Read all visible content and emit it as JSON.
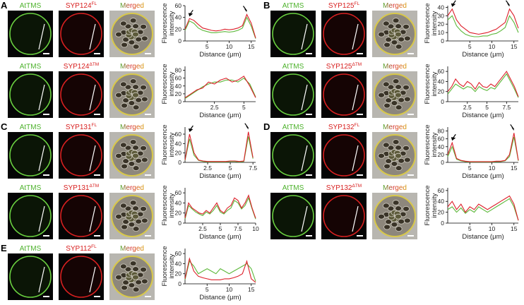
{
  "panels": [
    {
      "letter": "A",
      "rows": [
        {
          "green_label": "AtTMS",
          "red_label": "SYP124",
          "red_sup": "FL",
          "merged_label": "Merged",
          "plot": {
            "arrows": true,
            "ylabel_lines": [
              "Fluorescence",
              "intensity"
            ],
            "xlabel": "Distance (μm)",
            "xlim": [
              0,
              16
            ],
            "ylim": [
              0,
              60
            ],
            "xticks": [
              5,
              10,
              15
            ],
            "yticks": [
              0,
              20,
              40,
              60
            ],
            "x": [
              0,
              1,
              2,
              3,
              4,
              5,
              6,
              7,
              8,
              9,
              10,
              11,
              12,
              13,
              14,
              15,
              16
            ],
            "series": [
              {
                "color": "#5cb83a",
                "values": [
                  18,
                  34,
                  30,
                  22,
                  18,
                  16,
                  14,
                  14,
                  15,
                  16,
                  15,
                  16,
                  18,
                  22,
                  40,
                  25,
                  4
                ]
              },
              {
                "color": "#dd1f2a",
                "values": [
                  20,
                  38,
                  35,
                  28,
                  22,
                  20,
                  18,
                  17,
                  18,
                  20,
                  19,
                  20,
                  22,
                  26,
                  45,
                  30,
                  5
                ]
              }
            ]
          }
        },
        {
          "green_label": "AtTMS",
          "red_label": "SYP124",
          "red_sup": "ΔTM",
          "merged_label": "Merged",
          "plot": {
            "arrows": false,
            "ylabel_lines": [
              "Fluorescence",
              "intensity"
            ],
            "xlabel": "Distance (μm)",
            "xlim": [
              0,
              6
            ],
            "ylim": [
              0,
              90
            ],
            "xticks": [
              2.5,
              5
            ],
            "yticks": [
              0,
              20,
              40,
              60,
              80
            ],
            "x": [
              0,
              0.5,
              1,
              1.5,
              2,
              2.5,
              3,
              3.5,
              4,
              4.5,
              5,
              5.5,
              6
            ],
            "series": [
              {
                "color": "#5cb83a",
                "values": [
                  8,
                  18,
                  28,
                  38,
                  45,
                  50,
                  50,
                  55,
                  55,
                  50,
                  60,
                  45,
                  12
                ]
              },
              {
                "color": "#dd1f2a",
                "values": [
                  10,
                  20,
                  30,
                  35,
                  50,
                  45,
                  55,
                  60,
                  50,
                  55,
                  65,
                  40,
                  10
                ]
              }
            ]
          }
        }
      ]
    },
    {
      "letter": "B",
      "rows": [
        {
          "green_label": "AtTMS",
          "red_label": "SYP125",
          "red_sup": "FL",
          "merged_label": "Merged",
          "plot": {
            "arrows": true,
            "ylabel_lines": [
              "Fluorescence",
              "intensity"
            ],
            "xlabel": "Distance (μm)",
            "xlim": [
              0,
              16
            ],
            "ylim": [
              0,
              42
            ],
            "xticks": [
              5,
              10,
              15
            ],
            "yticks": [
              0,
              10,
              20,
              30,
              40
            ],
            "x": [
              0,
              1,
              2,
              3,
              4,
              5,
              6,
              7,
              8,
              9,
              10,
              11,
              12,
              13,
              14,
              15,
              16
            ],
            "series": [
              {
                "color": "#5cb83a",
                "values": [
                  25,
                  30,
                  18,
                  12,
                  8,
                  6,
                  5,
                  5,
                  6,
                  6,
                  8,
                  9,
                  12,
                  16,
                  30,
                  22,
                  10
                ]
              },
              {
                "color": "#dd1f2a",
                "values": [
                  30,
                  38,
                  25,
                  18,
                  14,
                  10,
                  9,
                  8,
                  9,
                  10,
                  12,
                  14,
                  18,
                  22,
                  38,
                  30,
                  15
                ]
              }
            ]
          }
        },
        {
          "green_label": "AtTMS",
          "red_label": "SYP125",
          "red_sup": "ΔTM",
          "merged_label": "Merged",
          "plot": {
            "arrows": false,
            "ylabel_lines": [
              "Fluorescence",
              "intensity"
            ],
            "xlabel": "Distance (μm)",
            "xlim": [
              0,
              9
            ],
            "ylim": [
              0,
              70
            ],
            "xticks": [
              2.5,
              5,
              7.5
            ],
            "yticks": [
              0,
              20,
              40,
              60
            ],
            "x": [
              0,
              0.5,
              1,
              1.5,
              2,
              2.5,
              3,
              3.5,
              4,
              4.5,
              5,
              5.5,
              6,
              6.5,
              7,
              7.5,
              8,
              8.5,
              9
            ],
            "series": [
              {
                "color": "#5cb83a",
                "values": [
                  15,
                  25,
                  35,
                  30,
                  25,
                  30,
                  28,
                  20,
                  30,
                  25,
                  22,
                  28,
                  25,
                  35,
                  45,
                  55,
                  40,
                  25,
                  8
                ]
              },
              {
                "color": "#dd1f2a",
                "values": [
                  20,
                  30,
                  45,
                  35,
                  30,
                  40,
                  35,
                  25,
                  38,
                  30,
                  28,
                  35,
                  30,
                  40,
                  50,
                  60,
                  45,
                  30,
                  10
                ]
              }
            ]
          }
        }
      ]
    },
    {
      "letter": "C",
      "rows": [
        {
          "green_label": "AtTMS",
          "red_label": "SYP131",
          "red_sup": "FL",
          "merged_label": "Merged",
          "plot": {
            "arrows": true,
            "ylabel_lines": [
              "Fluorescence",
              "intensity"
            ],
            "xlabel": "Distance (μm)",
            "xlim": [
              0,
              7.8
            ],
            "ylim": [
              0,
              75
            ],
            "xticks": [
              2.5,
              5,
              7.5
            ],
            "yticks": [
              0,
              20,
              40,
              60
            ],
            "x": [
              0,
              0.5,
              1,
              1.5,
              2,
              2.5,
              3,
              3.5,
              4,
              4.5,
              5,
              5.5,
              6,
              6.5,
              7,
              7.5
            ],
            "series": [
              {
                "color": "#5cb83a",
                "values": [
                  4,
                  50,
                  15,
                  4,
                  2,
                  1,
                  1,
                  1,
                  1,
                  1,
                  2,
                  2,
                  1,
                  2,
                  55,
                  8
                ]
              },
              {
                "color": "#dd1f2a",
                "values": [
                  5,
                  60,
                  20,
                  5,
                  3,
                  2,
                  2,
                  2,
                  2,
                  2,
                  3,
                  3,
                  2,
                  3,
                  65,
                  10
                ]
              }
            ]
          }
        },
        {
          "green_label": "AtTMS",
          "red_label": "SYP131",
          "red_sup": "ΔTM",
          "merged_label": "Merged",
          "plot": {
            "arrows": false,
            "ylabel_lines": [
              "Fluorescence",
              "intensity"
            ],
            "xlabel": "Distance (μm)",
            "xlim": [
              0,
              10
            ],
            "ylim": [
              0,
              70
            ],
            "xticks": [
              2.5,
              5,
              7.5,
              10
            ],
            "yticks": [
              0,
              20,
              40,
              60
            ],
            "x": [
              0,
              0.5,
              1,
              1.5,
              2,
              2.5,
              3,
              3.5,
              4,
              4.5,
              5,
              5.5,
              6,
              6.5,
              7,
              7.5,
              8,
              8.5,
              9,
              9.5,
              10
            ],
            "series": [
              {
                "color": "#5cb83a",
                "values": [
                  8,
                  35,
                  28,
                  22,
                  18,
                  15,
                  22,
                  18,
                  25,
                  35,
                  22,
                  18,
                  25,
                  30,
                  45,
                  40,
                  28,
                  35,
                  50,
                  28,
                  8
                ]
              },
              {
                "color": "#dd1f2a",
                "values": [
                  10,
                  40,
                  30,
                  25,
                  20,
                  18,
                  25,
                  20,
                  30,
                  40,
                  25,
                  20,
                  30,
                  35,
                  50,
                  45,
                  30,
                  40,
                  55,
                  30,
                  10
                ]
              }
            ]
          }
        }
      ]
    },
    {
      "letter": "D",
      "rows": [
        {
          "green_label": "AtTMS",
          "red_label": "SYP132",
          "red_sup": "FL",
          "merged_label": "Merged",
          "plot": {
            "arrows": true,
            "ylabel_lines": [
              "Fluorescence",
              "intensity"
            ],
            "xlabel": "Distance (μm)",
            "xlim": [
              0,
              16
            ],
            "ylim": [
              0,
              90
            ],
            "xticks": [
              5,
              10,
              15
            ],
            "yticks": [
              0,
              20,
              40,
              60,
              80
            ],
            "x": [
              0,
              1,
              2,
              3,
              4,
              5,
              6,
              7,
              8,
              9,
              10,
              11,
              12,
              13,
              14,
              15,
              16
            ],
            "series": [
              {
                "color": "#5cb83a",
                "values": [
                  15,
                  40,
                  8,
                  4,
                  2,
                  1,
                  1,
                  1,
                  1,
                  1,
                  1,
                  2,
                  2,
                  4,
                  15,
                  65,
                  4
                ]
              },
              {
                "color": "#dd1f2a",
                "values": [
                  20,
                  50,
                  10,
                  5,
                  3,
                  2,
                  2,
                  2,
                  2,
                  2,
                  2,
                  3,
                  3,
                  5,
                  20,
                  75,
                  5
                ]
              }
            ]
          }
        },
        {
          "green_label": "AtTMS",
          "red_label": "SYP132",
          "red_sup": "ΔTM",
          "merged_label": "Merged",
          "plot": {
            "arrows": false,
            "ylabel_lines": [
              "Fluorescence",
              "intensity"
            ],
            "xlabel": "Distance (μm)",
            "xlim": [
              0,
              16
            ],
            "ylim": [
              0,
              65
            ],
            "xticks": [
              5,
              10,
              15
            ],
            "yticks": [
              0,
              20,
              40,
              60
            ],
            "x": [
              0,
              1,
              2,
              3,
              4,
              5,
              6,
              7,
              8,
              9,
              10,
              11,
              12,
              13,
              14,
              15,
              16
            ],
            "series": [
              {
                "color": "#5cb83a",
                "values": [
                  25,
                  30,
                  20,
                  28,
                  18,
                  25,
                  20,
                  30,
                  25,
                  20,
                  25,
                  30,
                  35,
                  40,
                  45,
                  30,
                  5
                ]
              },
              {
                "color": "#dd1f2a",
                "values": [
                  30,
                  40,
                  25,
                  35,
                  20,
                  30,
                  25,
                  35,
                  30,
                  25,
                  30,
                  35,
                  40,
                  45,
                  50,
                  35,
                  5
                ]
              }
            ]
          }
        }
      ]
    },
    {
      "letter": "E",
      "rows": [
        {
          "green_label": "AtTMS",
          "red_label": "SYP112",
          "red_sup": "FL",
          "merged_label": "Merged",
          "plot": {
            "arrows": false,
            "ylabel_lines": [
              "Fluorescence",
              "intensity"
            ],
            "xlabel": "Distance (μm)",
            "xlim": [
              0,
              16
            ],
            "ylim": [
              0,
              70
            ],
            "xticks": [
              5,
              10,
              15
            ],
            "yticks": [
              0,
              20,
              40,
              60
            ],
            "x": [
              0,
              1,
              2,
              3,
              4,
              5,
              6,
              7,
              8,
              9,
              10,
              11,
              12,
              13,
              14,
              15,
              16
            ],
            "series": [
              {
                "color": "#5cb83a",
                "values": [
                  8,
                  45,
                  35,
                  20,
                  25,
                  30,
                  25,
                  20,
                  30,
                  25,
                  20,
                  25,
                  30,
                  35,
                  40,
                  30,
                  5
                ]
              },
              {
                "color": "#dd1f2a",
                "values": [
                  10,
                  50,
                  25,
                  15,
                  12,
                  10,
                  8,
                  8,
                  8,
                  10,
                  10,
                  12,
                  15,
                  20,
                  45,
                  10,
                  3
                ]
              }
            ]
          }
        }
      ]
    }
  ]
}
